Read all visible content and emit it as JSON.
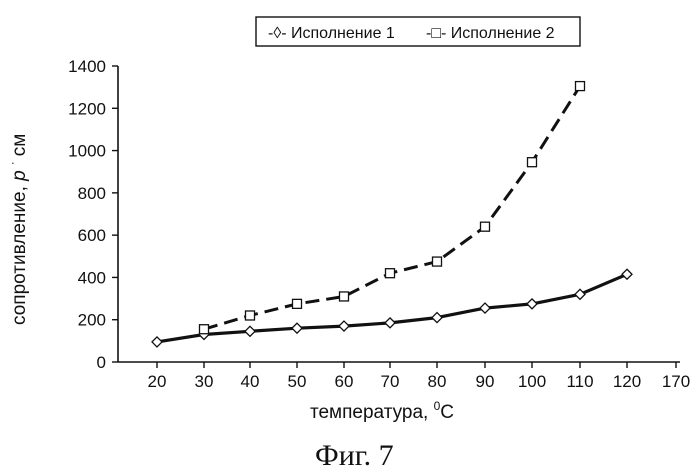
{
  "chart_data": {
    "type": "line",
    "title": "",
    "caption": "Фиг. 7",
    "xlabel": "температура, ",
    "xlabel_sup": "0",
    "xlabel_unit": "C",
    "ylabel": "сопротивление, ",
    "ylabel_italic": "p",
    "ylabel_dot": "·",
    "ylabel_unit": "см",
    "x_ticks": [
      20,
      30,
      40,
      50,
      60,
      70,
      80,
      90,
      100,
      110,
      120,
      170
    ],
    "y_ticks": [
      0,
      200,
      400,
      600,
      800,
      1000,
      1200,
      1400
    ],
    "ylim": [
      0,
      1400
    ],
    "grid": false,
    "legend_position": "top-right",
    "series": [
      {
        "name": "Исполнение 1",
        "marker": "diamond",
        "line": "solid",
        "legend_label": "-◊- Исполнение 1",
        "points": [
          {
            "x": 20,
            "y": 95
          },
          {
            "x": 30,
            "y": 130
          },
          {
            "x": 40,
            "y": 145
          },
          {
            "x": 50,
            "y": 160
          },
          {
            "x": 60,
            "y": 170
          },
          {
            "x": 70,
            "y": 185
          },
          {
            "x": 80,
            "y": 210
          },
          {
            "x": 90,
            "y": 255
          },
          {
            "x": 100,
            "y": 275
          },
          {
            "x": 110,
            "y": 320
          },
          {
            "x": 120,
            "y": 415
          }
        ]
      },
      {
        "name": "Исполнение 2",
        "marker": "square",
        "line": "dashed",
        "legend_label": "-□- Исполнение 2",
        "points": [
          {
            "x": 30,
            "y": 155
          },
          {
            "x": 40,
            "y": 220
          },
          {
            "x": 50,
            "y": 275
          },
          {
            "x": 60,
            "y": 310
          },
          {
            "x": 70,
            "y": 420
          },
          {
            "x": 80,
            "y": 475
          },
          {
            "x": 90,
            "y": 640
          },
          {
            "x": 100,
            "y": 945
          },
          {
            "x": 110,
            "y": 1305
          }
        ]
      }
    ]
  }
}
